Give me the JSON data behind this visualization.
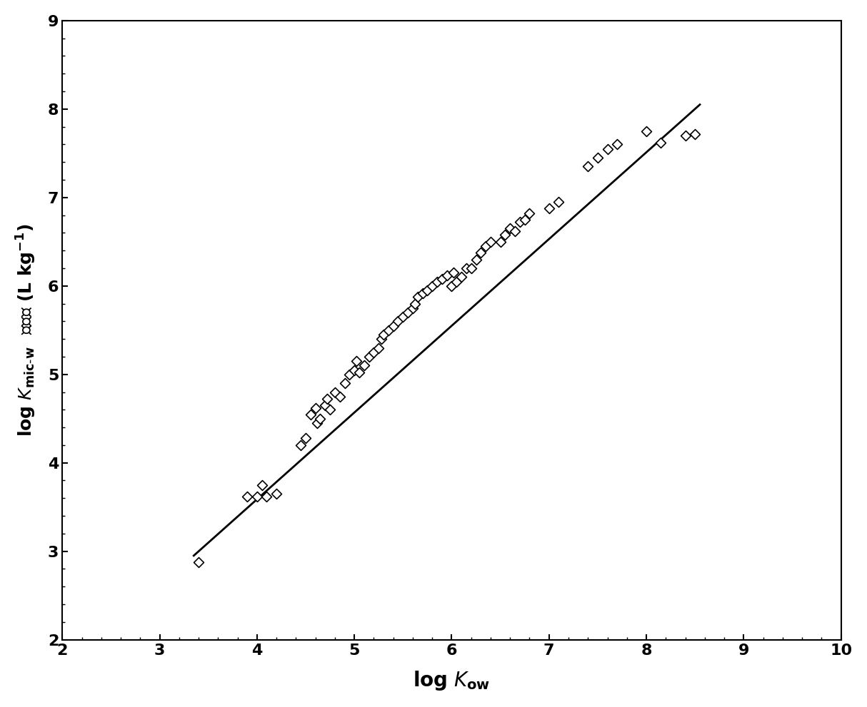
{
  "scatter_x": [
    3.4,
    3.9,
    4.0,
    4.05,
    4.1,
    4.2,
    4.45,
    4.5,
    4.55,
    4.6,
    4.62,
    4.65,
    4.7,
    4.72,
    4.75,
    4.8,
    4.85,
    4.9,
    4.95,
    5.0,
    5.02,
    5.05,
    5.1,
    5.15,
    5.2,
    5.25,
    5.28,
    5.3,
    5.35,
    5.4,
    5.45,
    5.5,
    5.55,
    5.6,
    5.62,
    5.65,
    5.7,
    5.75,
    5.8,
    5.85,
    5.9,
    5.95,
    6.0,
    6.02,
    6.05,
    6.1,
    6.15,
    6.2,
    6.25,
    6.3,
    6.35,
    6.4,
    6.5,
    6.55,
    6.6,
    6.65,
    6.7,
    6.75,
    6.8,
    7.0,
    7.1,
    7.4,
    7.5,
    7.6,
    7.7,
    8.0,
    8.15,
    8.4,
    8.5
  ],
  "scatter_y": [
    2.88,
    3.62,
    3.62,
    3.75,
    3.62,
    3.65,
    4.2,
    4.28,
    4.55,
    4.62,
    4.45,
    4.5,
    4.65,
    4.72,
    4.6,
    4.8,
    4.75,
    4.9,
    5.0,
    5.05,
    5.15,
    5.02,
    5.1,
    5.2,
    5.25,
    5.3,
    5.4,
    5.45,
    5.5,
    5.55,
    5.6,
    5.65,
    5.7,
    5.75,
    5.8,
    5.88,
    5.92,
    5.95,
    6.0,
    6.05,
    6.08,
    6.12,
    6.0,
    6.15,
    6.05,
    6.1,
    6.2,
    6.2,
    6.3,
    6.38,
    6.45,
    6.5,
    6.5,
    6.58,
    6.65,
    6.62,
    6.72,
    6.75,
    6.82,
    6.88,
    6.95,
    7.35,
    7.45,
    7.55,
    7.6,
    7.75,
    7.62,
    7.7,
    7.72
  ],
  "line_x": [
    3.35,
    8.55
  ],
  "line_y": [
    2.95,
    8.05
  ],
  "xlim": [
    2,
    10
  ],
  "ylim": [
    2,
    9
  ],
  "xticks": [
    2,
    3,
    4,
    5,
    6,
    7,
    8,
    9,
    10
  ],
  "yticks": [
    2,
    3,
    4,
    5,
    6,
    7,
    8,
    9
  ],
  "xlabel_plain": "log ",
  "xlabel_italic": "K",
  "xlabel_sub": "ow",
  "ylabel_text": "log K_mic-w 实验值 (L kg⁻¹)",
  "marker_color": "white",
  "marker_edge_color": "black",
  "line_color": "black",
  "background_color": "white",
  "tick_fontsize": 16,
  "label_fontsize": 18
}
